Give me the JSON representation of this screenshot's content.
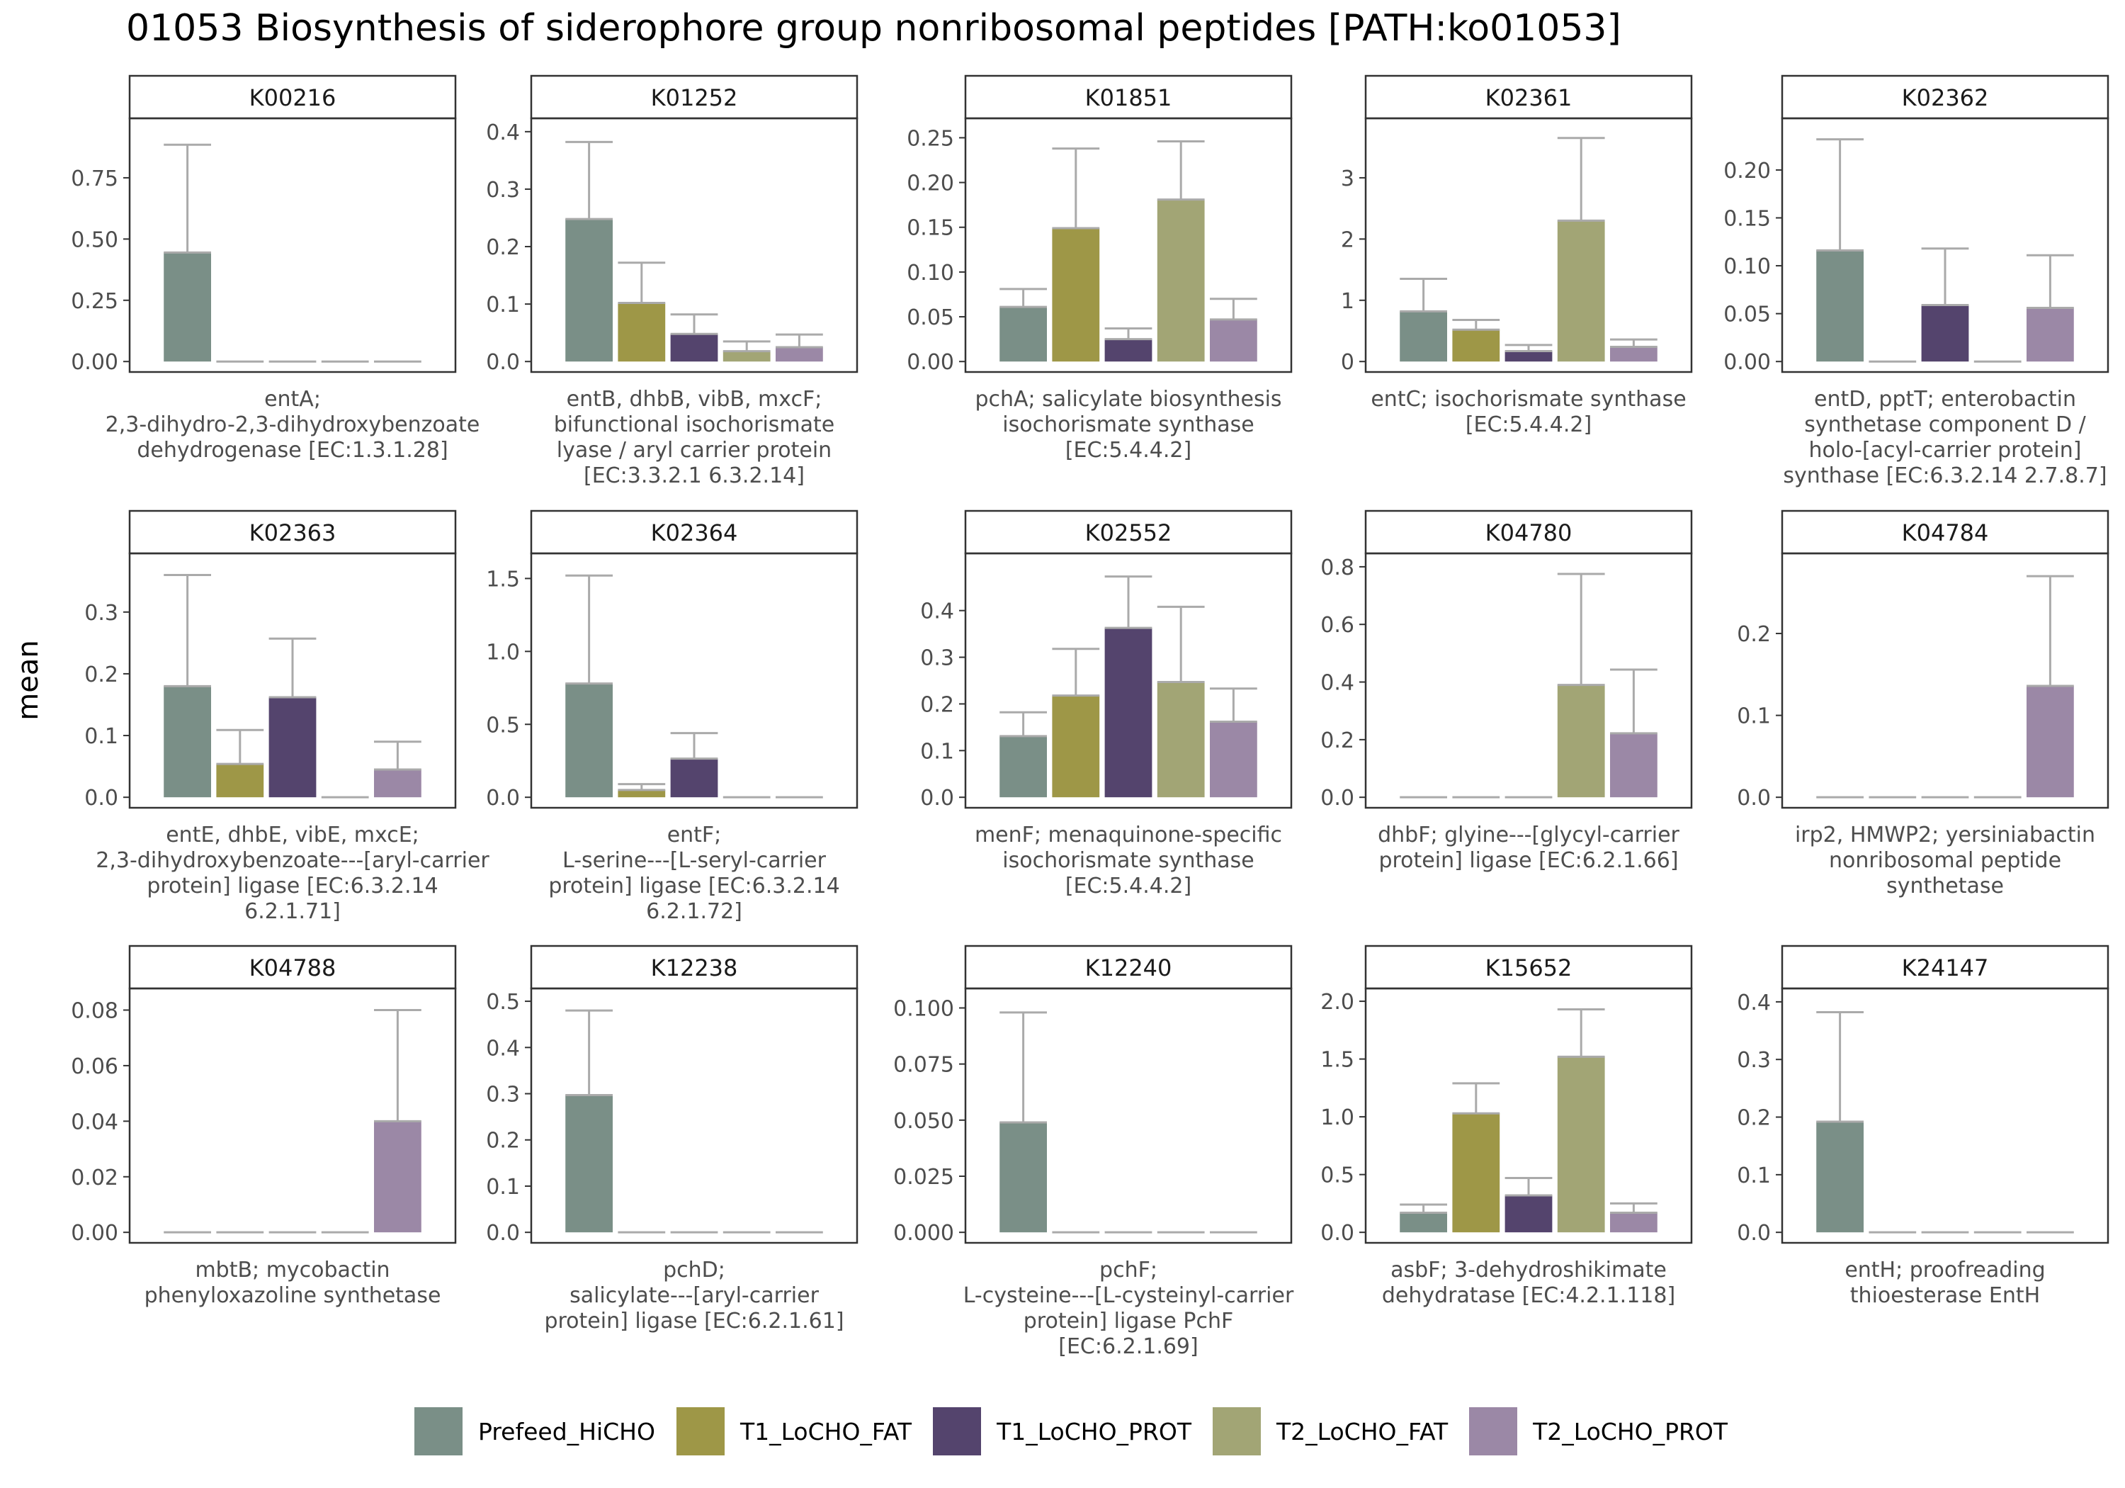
{
  "chart_data": {
    "type": "bar",
    "title": "01053 Biosynthesis of siderophore group nonribosomal peptides [PATH:ko01053]",
    "ylabel": "mean",
    "xlabel": "",
    "legend_position": "bottom",
    "groups": [
      "Prefeed_HiCHO",
      "T1_LoCHO_FAT",
      "T1_LoCHO_PROT",
      "T2_LoCHO_FAT",
      "T2_LoCHO_PROT"
    ],
    "colors": [
      "#7a8f87",
      "#9e9747",
      "#54446d",
      "#a2a575",
      "#9b88a6"
    ],
    "error_color": "#aaaaaa",
    "panels": [
      {
        "id": "K00216",
        "desc": [
          "entA;",
          "2,3-dihydro-2,3-dihydroxybenzoate",
          "dehydrogenase [EC:1.3.1.28]"
        ],
        "ylim": [
          0,
          0.95
        ],
        "ticks": [
          "0.00",
          "0.25",
          "0.50",
          "0.75"
        ],
        "tick_values": [
          0,
          0.25,
          0.5,
          0.75
        ],
        "values": [
          0.445,
          0,
          0,
          0,
          0
        ],
        "errors": [
          0.885,
          0,
          0,
          0,
          0
        ]
      },
      {
        "id": "K01252",
        "desc": [
          "entB, dhbB, vibB, mxcF;",
          "bifunctional isochorismate",
          "lyase / aryl carrier protein",
          "[EC:3.3.2.1 6.3.2.14]"
        ],
        "ylim": [
          0,
          0.405
        ],
        "ticks": [
          "0.0",
          "0.1",
          "0.2",
          "0.3",
          "0.4"
        ],
        "tick_values": [
          0,
          0.1,
          0.2,
          0.3,
          0.4
        ],
        "values": [
          0.248,
          0.102,
          0.048,
          0.018,
          0.025
        ],
        "errors": [
          0.382,
          0.172,
          0.082,
          0.035,
          0.047
        ]
      },
      {
        "id": "K01851",
        "desc": [
          "pchA; salicylate biosynthesis",
          "isochorismate synthase",
          "[EC:5.4.4.2]"
        ],
        "ylim": [
          0,
          0.26
        ],
        "ticks": [
          "0.00",
          "0.05",
          "0.10",
          "0.15",
          "0.20",
          "0.25"
        ],
        "tick_values": [
          0,
          0.05,
          0.1,
          0.15,
          0.2,
          0.25
        ],
        "values": [
          0.061,
          0.149,
          0.025,
          0.181,
          0.047
        ],
        "errors": [
          0.081,
          0.238,
          0.037,
          0.246,
          0.07
        ]
      },
      {
        "id": "K02361",
        "desc": [
          "entC; isochorismate synthase",
          "[EC:5.4.4.2]"
        ],
        "ylim": [
          0,
          3.8
        ],
        "ticks": [
          "0",
          "1",
          "2",
          "3"
        ],
        "tick_values": [
          0,
          1,
          2,
          3
        ],
        "values": [
          0.82,
          0.52,
          0.17,
          2.3,
          0.24
        ],
        "errors": [
          1.35,
          0.68,
          0.27,
          3.65,
          0.36
        ]
      },
      {
        "id": "K02362",
        "desc": [
          "entD, pptT; enterobactin",
          "synthetase component D /",
          "holo-[acyl-carrier protein]",
          "synthase [EC:6.3.2.14 2.7.8.7]"
        ],
        "ylim": [
          0,
          0.243
        ],
        "ticks": [
          "0.00",
          "0.05",
          "0.10",
          "0.15",
          "0.20"
        ],
        "tick_values": [
          0,
          0.05,
          0.1,
          0.15,
          0.2
        ],
        "values": [
          0.116,
          0,
          0.059,
          0,
          0.056
        ],
        "errors": [
          0.232,
          0,
          0.118,
          0,
          0.111
        ]
      },
      {
        "id": "K02363",
        "desc": [
          "entE, dhbE, vibE, mxcE;",
          "2,3-dihydroxybenzoate---[aryl-carrier",
          "protein] ligase [EC:6.3.2.14",
          "6.2.1.71]"
        ],
        "ylim": [
          0,
          0.378
        ],
        "ticks": [
          "0.0",
          "0.1",
          "0.2",
          "0.3"
        ],
        "tick_values": [
          0,
          0.1,
          0.2,
          0.3
        ],
        "values": [
          0.18,
          0.054,
          0.162,
          0,
          0.045
        ],
        "errors": [
          0.36,
          0.109,
          0.257,
          0,
          0.09
        ]
      },
      {
        "id": "K02364",
        "desc": [
          "entF;",
          "L-serine---[L-seryl-carrier",
          "protein] ligase [EC:6.3.2.14",
          "6.2.1.72]"
        ],
        "ylim": [
          0,
          1.6
        ],
        "ticks": [
          "0.0",
          "0.5",
          "1.0",
          "1.5"
        ],
        "tick_values": [
          0,
          0.5,
          1,
          1.5
        ],
        "values": [
          0.78,
          0.05,
          0.265,
          0,
          0
        ],
        "errors": [
          1.52,
          0.09,
          0.44,
          0,
          0
        ]
      },
      {
        "id": "K02552",
        "desc": [
          "menF; menaquinone-specific",
          "isochorismate synthase",
          "[EC:5.4.4.2]"
        ],
        "ylim": [
          0,
          0.5
        ],
        "ticks": [
          "0.0",
          "0.1",
          "0.2",
          "0.3",
          "0.4"
        ],
        "tick_values": [
          0,
          0.1,
          0.2,
          0.3,
          0.4
        ],
        "values": [
          0.131,
          0.218,
          0.363,
          0.247,
          0.162
        ],
        "errors": [
          0.182,
          0.318,
          0.473,
          0.408,
          0.233
        ]
      },
      {
        "id": "K04780",
        "desc": [
          "dhbF; glyine---[glycyl-carrier",
          "protein] ligase [EC:6.2.1.66]"
        ],
        "ylim": [
          0,
          0.81
        ],
        "ticks": [
          "0.0",
          "0.2",
          "0.4",
          "0.6",
          "0.8"
        ],
        "tick_values": [
          0,
          0.2,
          0.4,
          0.6,
          0.8
        ],
        "values": [
          0,
          0,
          0,
          0.39,
          0.222
        ],
        "errors": [
          0,
          0,
          0,
          0.775,
          0.443
        ]
      },
      {
        "id": "K04784",
        "desc": [
          "irp2, HMWP2; yersiniabactin",
          "nonribosomal peptide",
          "synthetase"
        ],
        "ylim": [
          0,
          0.285
        ],
        "ticks": [
          "0.0",
          "0.1",
          "0.2"
        ],
        "tick_values": [
          0,
          0.1,
          0.2
        ],
        "values": [
          0,
          0,
          0,
          0,
          0.136
        ],
        "errors": [
          0,
          0,
          0,
          0,
          0.27
        ]
      },
      {
        "id": "K04788",
        "desc": [
          "mbtB; mycobactin",
          "phenyloxazoline synthetase"
        ],
        "ylim": [
          0,
          0.084
        ],
        "ticks": [
          "0.00",
          "0.02",
          "0.04",
          "0.06",
          "0.08"
        ],
        "tick_values": [
          0,
          0.02,
          0.04,
          0.06,
          0.08
        ],
        "values": [
          0,
          0,
          0,
          0,
          0.04
        ],
        "errors": [
          0,
          0,
          0,
          0,
          0.08
        ]
      },
      {
        "id": "K12238",
        "desc": [
          "pchD;",
          "salicylate---[aryl-carrier",
          "protein] ligase [EC:6.2.1.61]"
        ],
        "ylim": [
          0,
          0.505
        ],
        "ticks": [
          "0.0",
          "0.1",
          "0.2",
          "0.3",
          "0.4",
          "0.5"
        ],
        "tick_values": [
          0,
          0.1,
          0.2,
          0.3,
          0.4,
          0.5
        ],
        "values": [
          0.297,
          0,
          0,
          0,
          0
        ],
        "errors": [
          0.48,
          0,
          0,
          0,
          0
        ]
      },
      {
        "id": "K12240",
        "desc": [
          "pchF;",
          "L-cysteine---[L-cysteinyl-carrier",
          "protein] ligase PchF",
          "[EC:6.2.1.69]"
        ],
        "ylim": [
          0,
          0.104
        ],
        "ticks": [
          "0.000",
          "0.025",
          "0.050",
          "0.075",
          "0.100"
        ],
        "tick_values": [
          0,
          0.025,
          0.05,
          0.075,
          0.1
        ],
        "values": [
          0.049,
          0,
          0,
          0,
          0
        ],
        "errors": [
          0.098,
          0,
          0,
          0,
          0
        ]
      },
      {
        "id": "K15652",
        "desc": [
          "asbF; 3-dehydroshikimate",
          "dehydratase [EC:4.2.1.118]"
        ],
        "ylim": [
          0,
          2.02
        ],
        "ticks": [
          "0.0",
          "0.5",
          "1.0",
          "1.5",
          "2.0"
        ],
        "tick_values": [
          0,
          0.5,
          1,
          1.5,
          2
        ],
        "values": [
          0.17,
          1.03,
          0.32,
          1.52,
          0.17
        ],
        "errors": [
          0.24,
          1.29,
          0.47,
          1.93,
          0.25
        ]
      },
      {
        "id": "K24147",
        "desc": [
          "entH; proofreading",
          "thioesterase EntH"
        ],
        "ylim": [
          0,
          0.405
        ],
        "ticks": [
          "0.0",
          "0.1",
          "0.2",
          "0.3",
          "0.4"
        ],
        "tick_values": [
          0,
          0.1,
          0.2,
          0.3,
          0.4
        ],
        "values": [
          0.192,
          0,
          0,
          0,
          0
        ],
        "errors": [
          0.382,
          0,
          0,
          0,
          0
        ]
      }
    ]
  }
}
